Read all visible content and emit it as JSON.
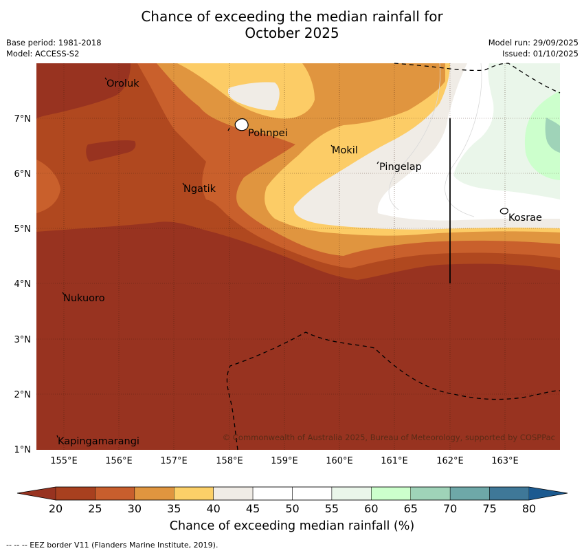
{
  "header": {
    "title_line1": "Chance of exceeding the median rainfall for",
    "title_line2": "October 2025",
    "base_period": "Base period: 1981-2018",
    "model": "Model: ACCESS-S2",
    "model_run": "Model run: 29/09/2025",
    "issued": "Issued: 01/10/2025"
  },
  "map": {
    "lon_labels": [
      "155°E",
      "156°E",
      "157°E",
      "158°E",
      "159°E",
      "160°E",
      "161°E",
      "162°E",
      "163°E"
    ],
    "lat_labels": [
      "7°N",
      "6°N",
      "5°N",
      "4°N",
      "3°N",
      "2°N",
      "1°N"
    ],
    "places": {
      "oroluk": "Oroluk",
      "pohnpei": "Pohnpei",
      "mokil": "Mokil",
      "pingelap": "Pingelap",
      "ngatik": "Ngatik",
      "kosrae": "Kosrae",
      "nukuoro": "Nukuoro",
      "kapingamarangi": "Kapingamarangi"
    },
    "copyright": "© Commonwealth of Australia 2025, Bureau of Meteorology, supported by COSPPac"
  },
  "colorbar": {
    "ticks": [
      "20",
      "25",
      "30",
      "35",
      "40",
      "45",
      "50",
      "55",
      "60",
      "65",
      "70",
      "75",
      "80"
    ],
    "colors": [
      "#a8401f",
      "#c85e2d",
      "#e0953f",
      "#fcd068",
      "#f0ece6",
      "#ffffff",
      "#ffffff",
      "#eaf6ea",
      "#ccffcc",
      "#9fd3b8",
      "#6ea8a8",
      "#3f7898"
    ],
    "under_color": "#983320",
    "over_color": "#1c5a90",
    "title": "Chance of exceeding median rainfall (%)"
  },
  "footnote": "--  --  -- EEZ border V11 (Flanders Marine Institute, 2019)."
}
